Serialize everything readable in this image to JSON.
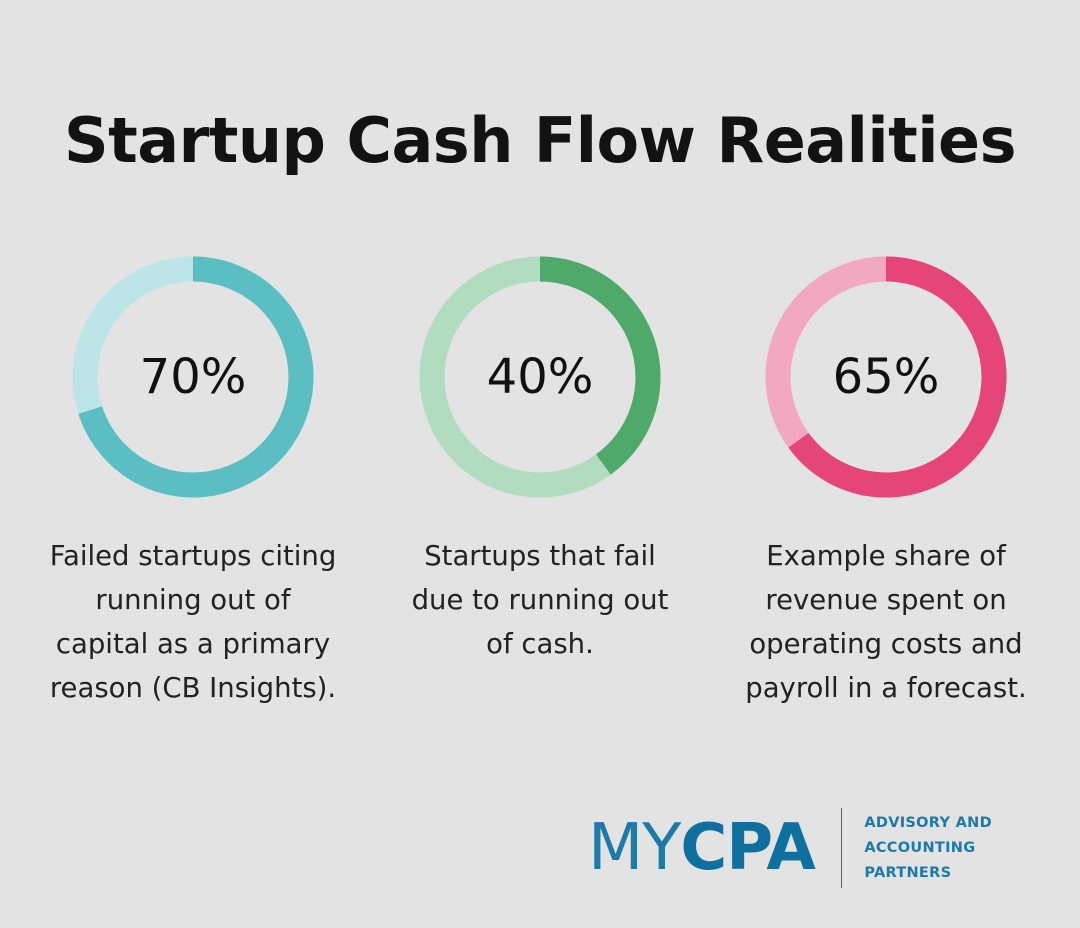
{
  "title": "Startup Cash Flow Realities",
  "chart_data": [
    {
      "type": "pie",
      "value": 70,
      "label": "70%",
      "description": "Failed startups citing running out of capital as a primary reason (CB Insights).",
      "color": "#5bbec3",
      "track_color": "#bde4e6"
    },
    {
      "type": "pie",
      "value": 40,
      "label": "40%",
      "description": "Startups that fail due to running out of cash.",
      "color": "#4ea96a",
      "track_color": "#b1dcbf"
    },
    {
      "type": "pie",
      "value": 65,
      "label": "65%",
      "description": "Example share of revenue spent on operating costs and payroll in a forecast.",
      "color": "#e54577",
      "track_color": "#f2a8c0"
    }
  ],
  "logo": {
    "my": "MY",
    "cpa": "CPA",
    "tagline": [
      "ADVISORY AND",
      "ACCOUNTING",
      "PARTNERS"
    ]
  }
}
